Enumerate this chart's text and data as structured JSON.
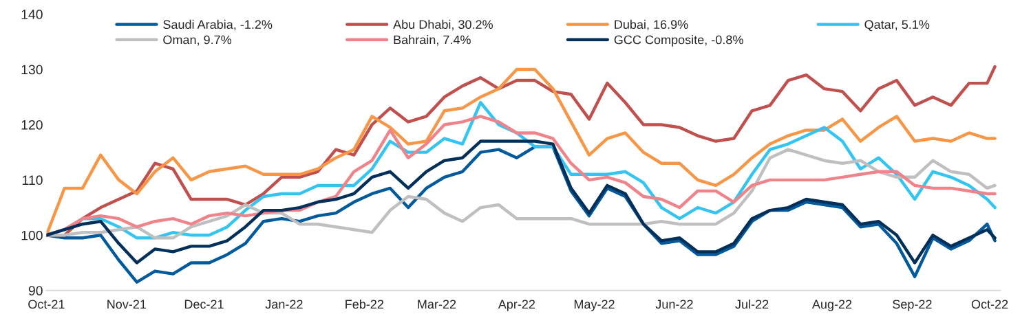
{
  "chart_data": {
    "type": "line",
    "x": [
      "2021-10-01",
      "2021-10-08",
      "2021-10-15",
      "2021-10-22",
      "2021-10-29",
      "2021-11-05",
      "2021-11-12",
      "2021-11-19",
      "2021-11-26",
      "2021-12-03",
      "2021-12-10",
      "2021-12-17",
      "2021-12-24",
      "2021-12-31",
      "2022-01-07",
      "2022-01-14",
      "2022-01-21",
      "2022-01-28",
      "2022-02-04",
      "2022-02-11",
      "2022-02-18",
      "2022-02-25",
      "2022-03-04",
      "2022-03-11",
      "2022-03-18",
      "2022-03-25",
      "2022-04-01",
      "2022-04-08",
      "2022-04-15",
      "2022-04-22",
      "2022-04-29",
      "2022-05-06",
      "2022-05-13",
      "2022-05-20",
      "2022-05-27",
      "2022-06-03",
      "2022-06-10",
      "2022-06-17",
      "2022-06-24",
      "2022-07-01",
      "2022-07-08",
      "2022-07-15",
      "2022-07-22",
      "2022-07-29",
      "2022-08-05",
      "2022-08-12",
      "2022-08-19",
      "2022-08-26",
      "2022-09-02",
      "2022-09-09",
      "2022-09-16",
      "2022-09-23",
      "2022-09-30",
      "2022-10-03"
    ],
    "series": [
      {
        "name": "Saudi Arabia, -1.2%",
        "color": "#005a9c",
        "values": [
          100,
          99.5,
          99.5,
          100,
          95.5,
          91.5,
          93.5,
          93,
          95,
          95,
          96.5,
          98.5,
          102.5,
          103,
          102.5,
          103.5,
          104,
          106,
          107.5,
          108.5,
          105,
          108.5,
          110.5,
          111.5,
          115,
          115.5,
          114,
          116,
          116,
          108,
          103.5,
          108.5,
          107,
          102,
          98.5,
          99,
          96.5,
          96.5,
          98,
          102.5,
          104.5,
          104.5,
          106,
          105.5,
          105,
          101.5,
          102,
          98.5,
          92.5,
          99.5,
          97.5,
          99,
          102,
          99
        ]
      },
      {
        "name": "Abu Dhabi, 30.2%",
        "color": "#c0504d",
        "values": [
          100,
          100,
          103,
          105,
          106.5,
          108,
          113,
          112,
          106.5,
          106.5,
          106.5,
          105.5,
          107.5,
          110.5,
          110.5,
          111.5,
          115.5,
          114.5,
          120,
          123,
          120.5,
          121.5,
          125,
          127,
          128.5,
          126.5,
          128,
          128,
          126,
          125.5,
          121,
          127.5,
          124,
          120,
          120,
          119.5,
          118,
          117,
          117.5,
          122.5,
          123.5,
          128,
          129,
          126.5,
          126,
          122.5,
          126.5,
          128,
          123.5,
          125,
          123.5,
          127.5,
          127.5,
          130.5
        ]
      },
      {
        "name": "Dubai, 16.9%",
        "color": "#f79646",
        "values": [
          100,
          108.5,
          108.5,
          114.5,
          110,
          107.5,
          111.5,
          114,
          110,
          111.5,
          112,
          112.5,
          111,
          111,
          111,
          112,
          114,
          115.5,
          121.5,
          119.5,
          116.5,
          117,
          122.5,
          123,
          125,
          126.5,
          130,
          130,
          126.5,
          120.5,
          114.5,
          117.5,
          118.5,
          115,
          113,
          113,
          110,
          109,
          111,
          114,
          116.5,
          118,
          119,
          119,
          121,
          117,
          119.5,
          121.5,
          117,
          117.5,
          117,
          118.5,
          117.5,
          117.5
        ]
      },
      {
        "name": "Qatar, 5.1%",
        "color": "#33c4f2",
        "values": [
          100,
          101,
          103,
          103,
          101.5,
          99.5,
          99.5,
          100.5,
          100,
          100,
          101.5,
          104.5,
          107,
          107.5,
          107.5,
          109,
          109,
          109,
          112,
          117,
          115,
          115,
          117.5,
          116.5,
          124,
          120,
          118.5,
          116,
          116,
          111,
          111,
          111,
          111.5,
          109.5,
          105,
          103,
          105,
          104,
          106,
          111,
          115.5,
          116.5,
          118,
          119.5,
          117,
          112,
          114,
          111,
          106.5,
          111.5,
          110.5,
          109,
          106.5,
          105
        ]
      },
      {
        "name": "Oman, 9.7%",
        "color": "#bfbfbf",
        "values": [
          100,
          100,
          100.5,
          100.5,
          101,
          101.5,
          99.5,
          99.5,
          101.5,
          102.5,
          103.5,
          105.5,
          104,
          104,
          102,
          102,
          101.5,
          101,
          100.5,
          104.5,
          107,
          106.5,
          104,
          102.5,
          105,
          105.5,
          103,
          103,
          103,
          103,
          102,
          102,
          102,
          102,
          102.5,
          102,
          102,
          102,
          104,
          108,
          114,
          115.5,
          114.5,
          113.5,
          113,
          113.5,
          111.5,
          110.5,
          110.5,
          113.5,
          111.5,
          111,
          108.5,
          109
        ]
      },
      {
        "name": "Bahrain, 7.4%",
        "color": "#f08389",
        "values": [
          100,
          101,
          103,
          103.5,
          103,
          101.5,
          102.5,
          103,
          102,
          103.5,
          104,
          103.5,
          104,
          104.5,
          104.5,
          106,
          107,
          111.5,
          113.5,
          119,
          114,
          116.5,
          120,
          120.5,
          121.5,
          120.5,
          118.5,
          118.5,
          117.5,
          113,
          110,
          110.5,
          109.5,
          107,
          106.5,
          105,
          108,
          108,
          106,
          109,
          110,
          110,
          110,
          110,
          110.5,
          111,
          111.5,
          111.5,
          109,
          108.5,
          108.5,
          108,
          107.5,
          107.5
        ]
      },
      {
        "name": "GCC Composite, -0.8%",
        "color": "#00305a",
        "values": [
          100,
          101,
          102,
          102.5,
          98.5,
          95,
          97.5,
          97,
          98,
          98,
          99,
          101.5,
          104.5,
          104.5,
          105,
          106,
          106.5,
          107.5,
          110.5,
          111.5,
          108.5,
          111.5,
          113.5,
          114,
          117,
          117,
          117,
          117,
          116.5,
          108.5,
          104,
          109,
          107.5,
          102,
          99,
          99.5,
          97,
          97,
          98.5,
          103,
          104.5,
          105,
          106.5,
          106,
          105.5,
          102,
          102.5,
          100,
          95,
          100,
          98,
          99.5,
          101,
          99.5
        ]
      }
    ],
    "xlim": [
      "2021-10-01",
      "2022-10-05"
    ],
    "xticks": [
      {
        "value": "2021-10-01",
        "label": "Oct-21"
      },
      {
        "value": "2021-11-01",
        "label": "Nov-21"
      },
      {
        "value": "2021-12-01",
        "label": "Dec-21"
      },
      {
        "value": "2022-01-01",
        "label": "Jan-22"
      },
      {
        "value": "2022-02-01",
        "label": "Feb-22"
      },
      {
        "value": "2022-03-01",
        "label": "Mar-22"
      },
      {
        "value": "2022-04-01",
        "label": "Apr-22"
      },
      {
        "value": "2022-05-01",
        "label": "May-22"
      },
      {
        "value": "2022-06-01",
        "label": "Jun-22"
      },
      {
        "value": "2022-07-01",
        "label": "Jul-22"
      },
      {
        "value": "2022-08-01",
        "label": "Aug-22"
      },
      {
        "value": "2022-09-01",
        "label": "Sep-22"
      },
      {
        "value": "2022-10-01",
        "label": "Oct-22"
      }
    ],
    "ylim": [
      90,
      140
    ],
    "yticks": [
      90,
      100,
      110,
      120,
      130,
      140
    ],
    "grid": false,
    "legend": "top",
    "marker": "none",
    "line_style": "solid"
  }
}
